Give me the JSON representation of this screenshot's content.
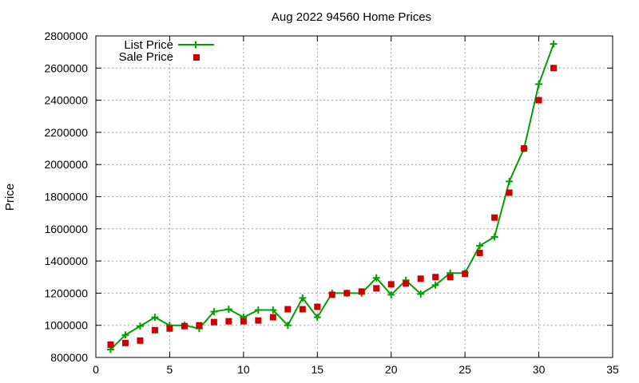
{
  "chart_data": {
    "type": "line",
    "title": "Aug 2022 94560 Home Prices",
    "xlabel": "",
    "ylabel": "Price",
    "xlim": [
      0,
      35
    ],
    "ylim": [
      800000,
      2800000
    ],
    "x_ticks": [
      "0",
      "5",
      "10",
      "15",
      "20",
      "25",
      "30",
      "35"
    ],
    "y_ticks": [
      "800000",
      "1000000",
      "1200000",
      "1400000",
      "1600000",
      "1800000",
      "2000000",
      "2200000",
      "2400000",
      "2600000",
      "2800000"
    ],
    "grid": true,
    "legend_position": "top-left",
    "series": [
      {
        "name": "List Price",
        "type": "line",
        "color": "#00a000",
        "marker": "plus",
        "points": [
          [
            1,
            850000
          ],
          [
            2,
            940000
          ],
          [
            3,
            995000
          ],
          [
            4,
            1050000
          ],
          [
            5,
            1000000
          ],
          [
            6,
            1000000
          ],
          [
            7,
            980000
          ],
          [
            8,
            1085000
          ],
          [
            9,
            1100000
          ],
          [
            10,
            1050000
          ],
          [
            11,
            1095000
          ],
          [
            12,
            1095000
          ],
          [
            13,
            1000000
          ],
          [
            14,
            1170000
          ],
          [
            15,
            1050000
          ],
          [
            16,
            1200000
          ],
          [
            17,
            1200000
          ],
          [
            18,
            1200000
          ],
          [
            19,
            1295000
          ],
          [
            20,
            1190000
          ],
          [
            21,
            1280000
          ],
          [
            22,
            1195000
          ],
          [
            23,
            1250000
          ],
          [
            24,
            1325000
          ],
          [
            25,
            1325000
          ],
          [
            26,
            1495000
          ],
          [
            27,
            1550000
          ],
          [
            28,
            1895000
          ],
          [
            29,
            2100000
          ],
          [
            30,
            2500000
          ],
          [
            31,
            2750000
          ]
        ]
      },
      {
        "name": "Sale Price",
        "type": "scatter",
        "color": "#cc0000",
        "marker": "square",
        "points": [
          [
            1,
            880000
          ],
          [
            2,
            890000
          ],
          [
            3,
            905000
          ],
          [
            4,
            970000
          ],
          [
            5,
            980000
          ],
          [
            6,
            995000
          ],
          [
            7,
            1000000
          ],
          [
            8,
            1020000
          ],
          [
            9,
            1025000
          ],
          [
            10,
            1025000
          ],
          [
            11,
            1030000
          ],
          [
            12,
            1050000
          ],
          [
            13,
            1100000
          ],
          [
            14,
            1100000
          ],
          [
            15,
            1115000
          ],
          [
            16,
            1190000
          ],
          [
            17,
            1200000
          ],
          [
            18,
            1210000
          ],
          [
            19,
            1230000
          ],
          [
            20,
            1255000
          ],
          [
            21,
            1260000
          ],
          [
            22,
            1290000
          ],
          [
            23,
            1300000
          ],
          [
            24,
            1300000
          ],
          [
            25,
            1320000
          ],
          [
            26,
            1450000
          ],
          [
            27,
            1670000
          ],
          [
            28,
            1825000
          ],
          [
            29,
            2100000
          ],
          [
            30,
            2400000
          ],
          [
            31,
            2600000
          ]
        ]
      }
    ]
  }
}
